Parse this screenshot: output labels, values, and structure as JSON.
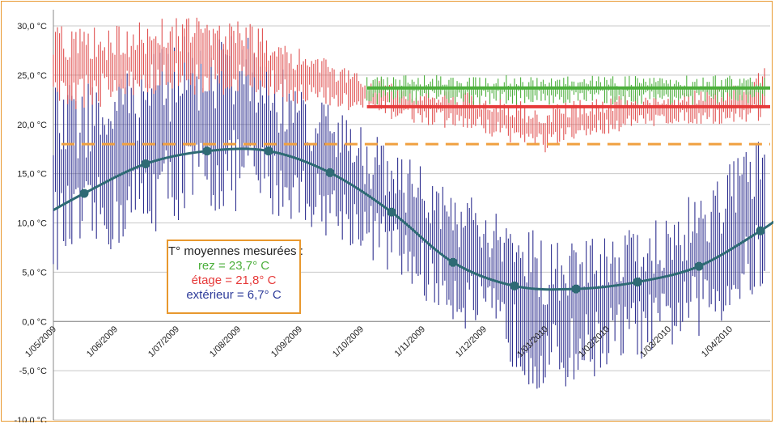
{
  "chart_data": {
    "type": "line",
    "title": "",
    "xlabel": "",
    "ylabel": "",
    "ylim": [
      -10,
      30
    ],
    "y_ticks": [
      "-10,0 °C",
      "-5,0 °C",
      "0,0 °C",
      "5,0 °C",
      "10,0 °C",
      "15,0 °C",
      "20,0 °C",
      "25,0 °C",
      "30,0 °C"
    ],
    "x_ticks": [
      "1/05/2009",
      "1/06/2009",
      "1/07/2009",
      "1/08/2009",
      "1/09/2009",
      "1/10/2009",
      "1/11/2009",
      "1/12/2009",
      "1/01/2010",
      "1/02/2010",
      "1/03/2010",
      "1/04/2010"
    ],
    "grid": true,
    "series": [
      {
        "name": "extérieur",
        "kind": "daily-range",
        "color": "#2e2f8f",
        "anchors_x": [
          0,
          1,
          2,
          3,
          4,
          5,
          6,
          7,
          8,
          9,
          10,
          11,
          11.6
        ],
        "anchors_low": [
          5,
          7,
          10,
          11,
          10,
          7,
          2,
          -2,
          -8,
          -5,
          -3,
          0,
          3
        ],
        "anchors_high": [
          24,
          25,
          29,
          30,
          24,
          20,
          16,
          12,
          9,
          10,
          11,
          16,
          21
        ]
      },
      {
        "name": "étage",
        "kind": "daily-range",
        "color": "#e05050",
        "anchors_x": [
          0,
          1,
          2,
          3,
          4,
          5,
          6,
          7,
          8,
          9,
          10,
          11,
          11.6
        ],
        "anchors_low": [
          21,
          22,
          23,
          23,
          22,
          21,
          20,
          19,
          17,
          19,
          20,
          20,
          20
        ],
        "anchors_high": [
          30,
          30,
          31,
          31,
          28,
          25,
          24,
          23,
          22,
          23,
          23,
          24,
          26
        ]
      },
      {
        "name": "rez",
        "kind": "daily-range",
        "x_range": [
          5.1,
          11.6
        ],
        "color": "#4caf3c",
        "low": 22,
        "high": 25
      },
      {
        "name": "rez (moyenne)",
        "kind": "horizontal",
        "color": "#4caf3c",
        "x_range": [
          5.1,
          11.6
        ],
        "value": 23.7
      },
      {
        "name": "étage (moyenne)",
        "kind": "horizontal",
        "color": "#e63a3a",
        "x_range": [
          5.1,
          11.6
        ],
        "value": 21.8
      },
      {
        "name": "seuil",
        "kind": "horizontal-dashed",
        "color": "#f0a040",
        "x_range": [
          0.13,
          11.6
        ],
        "value": 18
      },
      {
        "name": "extérieur (moyenne mensuelle)",
        "kind": "smooth-line",
        "color": "#2e6a74",
        "x": [
          0,
          0.5,
          1.5,
          2.5,
          3.5,
          4.5,
          5.5,
          6.5,
          7.5,
          8.5,
          9.5,
          10.5,
          11.5
        ],
        "y": [
          11.3,
          13,
          16,
          17.3,
          17.3,
          15.1,
          11.1,
          6,
          3.6,
          3.3,
          4,
          5.6,
          9.2
        ]
      },
      {
        "name": "extérieur (fin)",
        "kind": "line-end",
        "x": [
          11.5,
          11.9
        ],
        "y": [
          9.2,
          11
        ]
      }
    ],
    "annotation": {
      "title": "T° moyennes mesurées :",
      "lines": [
        {
          "label": "rez = 23,7° C",
          "color": "#4caf3c"
        },
        {
          "label": "étage = 21,8° C",
          "color": "#e63a3a"
        },
        {
          "label": "extérieur = 6,7° C",
          "color": "#2e3c9a"
        }
      ]
    }
  }
}
